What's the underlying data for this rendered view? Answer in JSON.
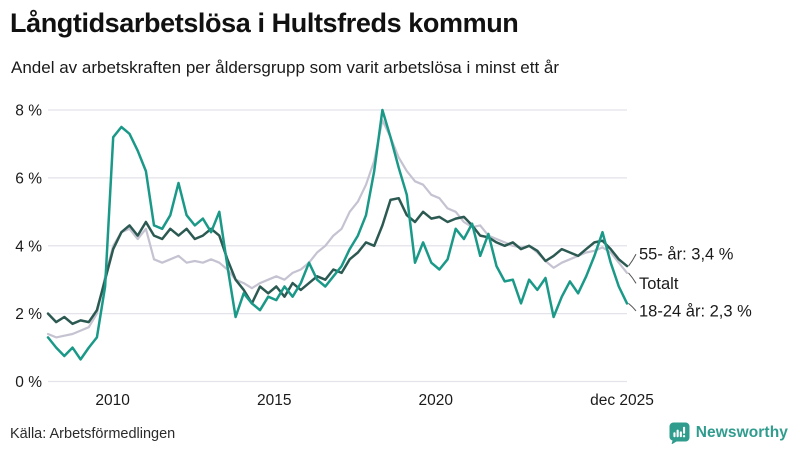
{
  "header": {
    "title": "Långtidsarbetslösa i Hultsfreds kommun",
    "subtitle": "Andel av arbetskraften per åldersgrupp som varit arbetslösa i minst ett år"
  },
  "footer": {
    "source": "Källa: Arbetsförmedlingen",
    "brand": "Newsworthy",
    "brand_color": "#2f9c8e"
  },
  "chart_data": {
    "type": "line",
    "title": "Långtidsarbetslösa i Hultsfreds kommun",
    "subtitle": "Andel av arbetskraften per åldersgrupp som varit arbetslösa i minst ett år",
    "ylabel": "",
    "xlabel": "",
    "ylim": [
      0,
      8
    ],
    "grid": true,
    "grid_color": "#e3e3e9",
    "x_unit": "decimal_year_quarterly",
    "x_start": 2008.0,
    "x_step": 0.25,
    "x_end_label_period": "dec 2025",
    "y_ticks": [
      {
        "value": 8,
        "label": "8 %"
      },
      {
        "value": 6,
        "label": "6 %"
      },
      {
        "value": 4,
        "label": "4 %"
      },
      {
        "value": 2,
        "label": "2 %"
      },
      {
        "value": 0,
        "label": "0 %"
      }
    ],
    "x_ticks": [
      {
        "value": 2010,
        "label": "2010"
      },
      {
        "value": 2015,
        "label": "2015"
      },
      {
        "value": 2020,
        "label": "2020"
      },
      {
        "value": 2025.917,
        "label": "dec 2025"
      }
    ],
    "legend_position": "end-of-line-labels",
    "series": [
      {
        "name": "Totalt",
        "color": "#c5c3d1",
        "end_label": "Totalt",
        "end_value_shown": null,
        "values": [
          1.4,
          1.3,
          1.35,
          1.4,
          1.5,
          1.6,
          2.0,
          3.1,
          4.0,
          4.4,
          4.5,
          4.2,
          4.5,
          3.6,
          3.5,
          3.6,
          3.7,
          3.5,
          3.55,
          3.5,
          3.6,
          3.5,
          3.3,
          3.0,
          2.9,
          2.75,
          2.9,
          3.0,
          3.1,
          3.0,
          3.2,
          3.3,
          3.5,
          3.8,
          4.0,
          4.3,
          4.5,
          5.0,
          5.3,
          5.8,
          6.5,
          7.7,
          7.2,
          6.6,
          6.2,
          5.9,
          5.8,
          5.5,
          5.4,
          5.1,
          5.0,
          4.7,
          4.55,
          4.6,
          4.3,
          4.2,
          4.1,
          4.0,
          3.95,
          4.0,
          3.8,
          3.55,
          3.35,
          3.5,
          3.6,
          3.7,
          3.8,
          3.85,
          3.95,
          3.8,
          3.5,
          3.2
        ]
      },
      {
        "name": "55- år",
        "color": "#2c5a52",
        "end_label": "55- år: 3,4 %",
        "end_value_shown": "3,4 %",
        "values": [
          2.0,
          1.75,
          1.9,
          1.7,
          1.8,
          1.75,
          2.1,
          3.0,
          3.9,
          4.4,
          4.6,
          4.3,
          4.7,
          4.3,
          4.2,
          4.5,
          4.3,
          4.5,
          4.2,
          4.3,
          4.5,
          4.3,
          3.6,
          3.0,
          2.7,
          2.3,
          2.8,
          2.6,
          2.8,
          2.5,
          2.9,
          2.7,
          2.9,
          3.1,
          3.0,
          3.3,
          3.2,
          3.6,
          3.8,
          4.1,
          4.0,
          4.6,
          5.35,
          5.4,
          4.9,
          4.7,
          5.0,
          4.8,
          4.85,
          4.7,
          4.8,
          4.85,
          4.6,
          4.3,
          4.25,
          4.1,
          4.0,
          4.1,
          3.9,
          4.0,
          3.85,
          3.55,
          3.7,
          3.9,
          3.8,
          3.7,
          3.9,
          4.1,
          4.15,
          3.9,
          3.6,
          3.4
        ]
      },
      {
        "name": "18-24 år",
        "color": "#1a9988",
        "end_label": "18-24 år: 2,3 %",
        "end_value_shown": "2,3 %",
        "values": [
          1.3,
          1.0,
          0.75,
          1.0,
          0.65,
          1.0,
          1.3,
          2.8,
          7.2,
          7.5,
          7.3,
          6.8,
          6.2,
          4.6,
          4.5,
          4.9,
          5.85,
          4.9,
          4.6,
          4.8,
          4.4,
          5.0,
          3.4,
          1.9,
          2.6,
          2.3,
          2.1,
          2.5,
          2.4,
          2.8,
          2.5,
          2.9,
          3.5,
          3.0,
          2.8,
          3.1,
          3.4,
          3.9,
          4.3,
          4.9,
          6.2,
          8.0,
          7.2,
          6.3,
          5.5,
          3.5,
          4.1,
          3.5,
          3.3,
          3.6,
          4.5,
          4.2,
          4.65,
          3.7,
          4.35,
          3.4,
          2.95,
          3.0,
          2.3,
          3.0,
          2.7,
          3.05,
          1.9,
          2.5,
          2.95,
          2.6,
          3.1,
          3.7,
          4.4,
          3.5,
          2.8,
          2.3
        ]
      }
    ]
  }
}
